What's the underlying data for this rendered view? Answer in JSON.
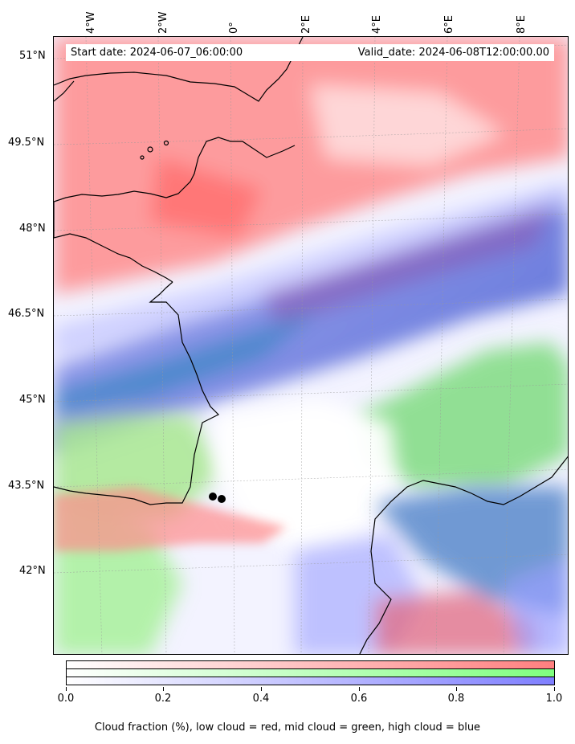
{
  "map": {
    "header": {
      "start_date": "Start date: 2024-06-07_06:00:00",
      "valid_date": "Valid_date: 2024-06-08T12:00:00.00"
    },
    "longitude_labels": [
      "4°W",
      "2°W",
      "0°",
      "2°E",
      "4°E",
      "6°E",
      "8°E"
    ],
    "latitude_labels": [
      "51°N",
      "49.5°N",
      "48°N",
      "46.5°N",
      "45°N",
      "43.5°N",
      "42°N"
    ],
    "markers": [
      "point-marker",
      "point-marker"
    ]
  },
  "colorbar": {
    "tick_labels": [
      "0.0",
      "0.2",
      "0.4",
      "0.6",
      "0.8",
      "1.0"
    ],
    "colors": {
      "low": "#ff7f7f",
      "mid": "#7fff7f",
      "high": "#7f7fff"
    },
    "caption": "Cloud fraction (%), low cloud = red, mid cloud = green, high cloud = blue"
  }
}
